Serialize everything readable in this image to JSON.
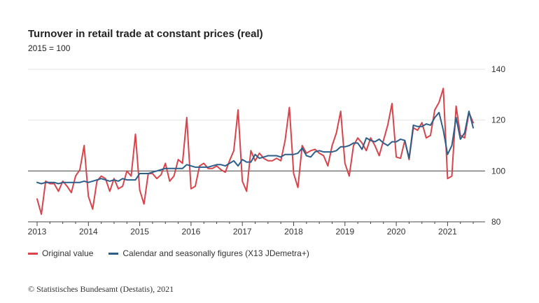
{
  "chart_data": {
    "type": "line",
    "title": "Turnover in retail trade at constant prices (real)",
    "subtitle": "2015 = 100",
    "xlabel": "",
    "ylabel": "",
    "xlim": [
      "2013-01",
      "2021-07"
    ],
    "ylim": [
      80,
      140
    ],
    "yticks": [
      80,
      100,
      120,
      140
    ],
    "xtick_labels": [
      "2013",
      "2014",
      "2015",
      "2016",
      "2017",
      "2018",
      "2019",
      "2020",
      "2021"
    ],
    "reference_line": 100,
    "grid": "horizontal",
    "legend_position": "bottom-left",
    "x": [
      "2013-01",
      "2013-02",
      "2013-03",
      "2013-04",
      "2013-05",
      "2013-06",
      "2013-07",
      "2013-08",
      "2013-09",
      "2013-10",
      "2013-11",
      "2013-12",
      "2014-01",
      "2014-02",
      "2014-03",
      "2014-04",
      "2014-05",
      "2014-06",
      "2014-07",
      "2014-08",
      "2014-09",
      "2014-10",
      "2014-11",
      "2014-12",
      "2015-01",
      "2015-02",
      "2015-03",
      "2015-04",
      "2015-05",
      "2015-06",
      "2015-07",
      "2015-08",
      "2015-09",
      "2015-10",
      "2015-11",
      "2015-12",
      "2016-01",
      "2016-02",
      "2016-03",
      "2016-04",
      "2016-05",
      "2016-06",
      "2016-07",
      "2016-08",
      "2016-09",
      "2016-10",
      "2016-11",
      "2016-12",
      "2017-01",
      "2017-02",
      "2017-03",
      "2017-04",
      "2017-05",
      "2017-06",
      "2017-07",
      "2017-08",
      "2017-09",
      "2017-10",
      "2017-11",
      "2017-12",
      "2018-01",
      "2018-02",
      "2018-03",
      "2018-04",
      "2018-05",
      "2018-06",
      "2018-07",
      "2018-08",
      "2018-09",
      "2018-10",
      "2018-11",
      "2018-12",
      "2019-01",
      "2019-02",
      "2019-03",
      "2019-04",
      "2019-05",
      "2019-06",
      "2019-07",
      "2019-08",
      "2019-09",
      "2019-10",
      "2019-11",
      "2019-12",
      "2020-01",
      "2020-02",
      "2020-03",
      "2020-04",
      "2020-05",
      "2020-06",
      "2020-07",
      "2020-08",
      "2020-09",
      "2020-10",
      "2020-11",
      "2020-12",
      "2021-01",
      "2021-02",
      "2021-03",
      "2021-04",
      "2021-05",
      "2021-06",
      "2021-07"
    ],
    "series": [
      {
        "name": "Original value",
        "color": "#d9444b",
        "values": [
          89,
          83,
          96,
          95,
          95,
          92,
          96,
          94,
          91.5,
          98,
          100.5,
          110,
          90,
          85,
          96,
          98,
          97,
          92,
          97,
          93,
          94,
          100,
          98,
          114.5,
          92.5,
          87,
          99,
          99,
          97,
          98.5,
          103,
          96,
          98,
          104.5,
          103,
          121,
          93,
          94,
          102,
          103,
          101,
          101,
          102,
          100.5,
          99.5,
          104,
          108,
          124,
          96,
          92,
          108,
          104,
          107,
          105,
          104,
          104,
          105,
          104,
          112,
          125,
          99,
          93.5,
          110,
          107,
          108,
          108.5,
          107,
          106,
          102,
          110,
          115,
          123.5,
          103,
          98,
          110,
          113,
          111,
          108,
          113,
          110,
          106,
          112,
          118,
          126.5,
          105.5,
          105,
          112,
          104.5,
          117,
          116,
          119,
          113,
          114,
          124,
          127,
          132.5,
          97,
          98,
          125.5,
          114,
          113,
          123,
          119
        ]
      },
      {
        "name": "Calendar and seasonally figures (X13 JDemetra+)",
        "color": "#2c5f8a",
        "values": [
          95.5,
          95,
          95.5,
          95.5,
          95.5,
          95,
          95.5,
          95.5,
          95.5,
          95.5,
          95.5,
          96,
          95.5,
          96,
          96.5,
          97,
          96.5,
          96,
          96.5,
          96,
          97,
          96.5,
          96.5,
          96.5,
          99,
          99,
          99,
          99.5,
          100,
          100.5,
          101,
          101,
          101,
          101,
          101,
          102.5,
          102,
          101.5,
          101.5,
          101.5,
          101.5,
          102,
          102.5,
          102.5,
          102,
          103,
          104,
          102,
          104.5,
          103.5,
          103.5,
          106.5,
          105,
          105.5,
          106,
          106,
          106,
          105.5,
          106.5,
          106.5,
          106.5,
          107,
          109,
          106,
          105.5,
          107.5,
          108,
          107.5,
          107.5,
          107.5,
          108,
          109.5,
          109.5,
          110,
          111,
          111,
          108.5,
          113,
          112,
          111.5,
          112.5,
          111,
          110,
          111.5,
          111.5,
          112.5,
          112,
          105,
          118,
          117.5,
          117.5,
          118.5,
          118,
          121,
          123,
          116,
          106.5,
          110,
          121,
          112.5,
          115,
          123.5,
          117
        ]
      }
    ]
  },
  "source_text": "© Statistisches Bundesamt (Destatis), 2021"
}
